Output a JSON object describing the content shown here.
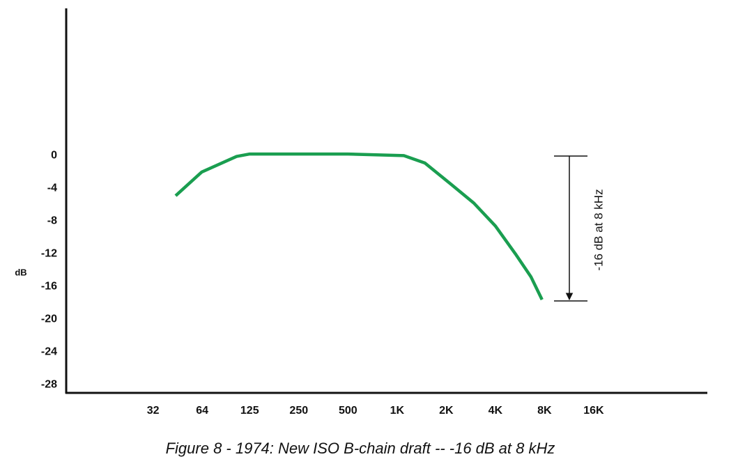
{
  "chart_data": {
    "type": "line",
    "caption": "Figure 8  -  1974: New ISO B-chain draft -- -16 dB at 8 kHz",
    "y_label": "dB",
    "annotation": "-16 dB at 8 kHz",
    "x_scale": "log",
    "xlim": [
      9.4,
      79500
    ],
    "ylim": [
      -29,
      18
    ],
    "xticks": [
      32,
      64,
      125,
      250,
      500,
      {
        "value": 1000,
        "label": "1K"
      },
      {
        "value": 2000,
        "label": "2K"
      },
      {
        "value": 4000,
        "label": "4K"
      },
      {
        "value": 8000,
        "label": "8K"
      },
      {
        "value": 16000,
        "label": "16K"
      }
    ],
    "yticks": [
      0,
      -4,
      -8,
      -12,
      -16,
      -20,
      -24,
      -28
    ],
    "grid": false,
    "series": [
      {
        "color": "#1a9e50",
        "x": [
          44,
          63.6,
          104,
          125,
          250,
          500,
          1100,
          1480,
          2140,
          2950,
          4000,
          5300,
          6600,
          7720
        ],
        "values": [
          -4.9,
          -2.0,
          -0.1,
          0.2,
          0.2,
          0.2,
          0,
          -0.9,
          -3.5,
          -5.8,
          -8.6,
          -12,
          -14.8,
          -17.6
        ]
      }
    ]
  }
}
